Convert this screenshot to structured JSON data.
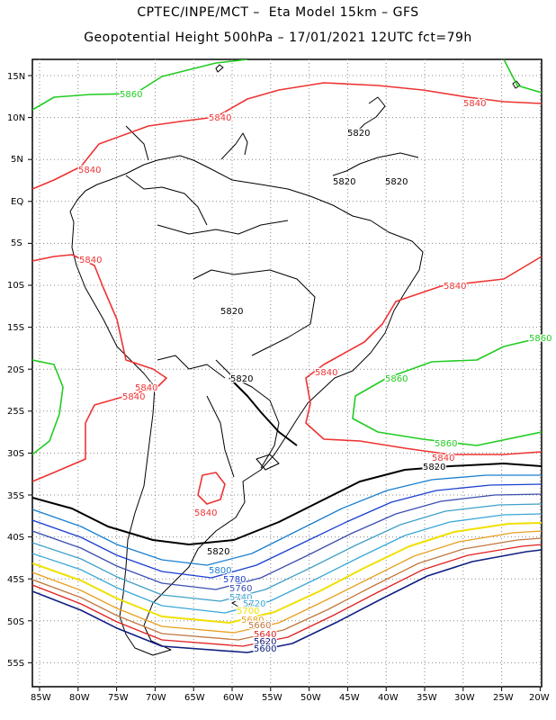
{
  "header": {
    "line1": "CPTEC/INPE/MCT –  Eta Model 15km – GFS",
    "line2": "Geopotential Height 500hPa – 17/01/2021 12UTC fct=79h"
  },
  "axes": {
    "lat_labels": [
      "15N",
      "10N",
      "5N",
      "EQ",
      "5S",
      "10S",
      "15S",
      "20S",
      "25S",
      "30S",
      "35S",
      "40S",
      "45S",
      "50S",
      "55S"
    ],
    "lon_labels": [
      "85W",
      "80W",
      "75W",
      "70W",
      "65W",
      "60W",
      "55W",
      "50W",
      "45W",
      "40W",
      "35W",
      "30W",
      "25W",
      "20W"
    ],
    "grid": "dotted"
  },
  "colors": {
    "c5860": "#22cc22",
    "c5840": "#ee3333",
    "c5820": "#000000",
    "c5800": "#1a7fd0",
    "c5780": "#1a3fd0",
    "c5760": "#3a4fb0",
    "c5740": "#3fa0c8",
    "c5720": "#3aa8d8",
    "c5700": "#f0e000",
    "c5680": "#e8a020",
    "c5660": "#c07840",
    "c5640": "#e02020",
    "c5620": "#102080",
    "land": "#000000"
  },
  "contour_labels": [
    {
      "text": "5860",
      "c": "c5860"
    },
    {
      "text": "5840",
      "c": "c5840"
    },
    {
      "text": "5820",
      "c": "c5820"
    },
    {
      "text": "5820",
      "c": "c5820"
    },
    {
      "text": "5820",
      "c": "c5820"
    },
    {
      "text": "5840",
      "c": "c5840"
    },
    {
      "text": "5840",
      "c": "c5840"
    },
    {
      "text": "5840",
      "c": "c5840"
    },
    {
      "text": "5820",
      "c": "c5820"
    },
    {
      "text": "5860",
      "c": "c5860"
    },
    {
      "text": "5840",
      "c": "c5840"
    },
    {
      "text": "5840",
      "c": "c5840"
    },
    {
      "text": "5820",
      "c": "c5820"
    },
    {
      "text": "5840",
      "c": "c5840"
    },
    {
      "text": "5860",
      "c": "c5860"
    },
    {
      "text": "5860",
      "c": "c5860"
    },
    {
      "text": "5840",
      "c": "c5840"
    },
    {
      "text": "5820",
      "c": "c5820"
    },
    {
      "text": "5840",
      "c": "c5840"
    },
    {
      "text": "5820",
      "c": "c5820"
    },
    {
      "text": "5800",
      "c": "c5800"
    },
    {
      "text": "5780",
      "c": "c5780"
    },
    {
      "text": "5760",
      "c": "c5760"
    },
    {
      "text": "5740",
      "c": "c5740"
    },
    {
      "text": "5720",
      "c": "c5720"
    },
    {
      "text": "5700",
      "c": "c5700"
    },
    {
      "text": "5680",
      "c": "c5680"
    },
    {
      "text": "5660",
      "c": "c5660"
    },
    {
      "text": "5640",
      "c": "c5640"
    },
    {
      "text": "5620",
      "c": "c5620"
    },
    {
      "text": "5600",
      "c": "c5620"
    },
    {
      "text": "5840",
      "c": "c5840"
    }
  ]
}
